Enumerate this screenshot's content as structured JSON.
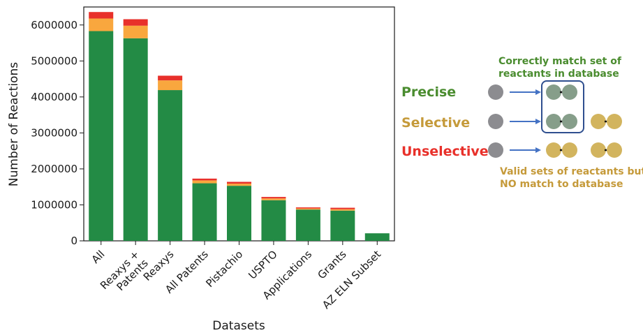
{
  "chart_data": {
    "type": "bar",
    "stacked": true,
    "xlabel": "Datasets",
    "ylabel": "Number of Reactions",
    "ylim": [
      0,
      6500000
    ],
    "yticks": [
      0,
      1000000,
      2000000,
      3000000,
      4000000,
      5000000,
      6000000
    ],
    "categories": [
      "All",
      "Reaxys + Patents",
      "Reaxys",
      "All Patents",
      "Pistachio",
      "USPTO",
      "Applications",
      "Grants",
      "AZ ELN Subset"
    ],
    "series": [
      {
        "key": "precise",
        "color": "#238b45",
        "values": [
          5830000,
          5630000,
          4190000,
          1600000,
          1530000,
          1130000,
          870000,
          840000,
          210000
        ]
      },
      {
        "key": "selective",
        "color": "#f9a73e",
        "values": [
          350000,
          350000,
          270000,
          80000,
          60000,
          50000,
          30000,
          40000,
          0
        ]
      },
      {
        "key": "unselective",
        "color": "#e8302a",
        "values": [
          180000,
          180000,
          130000,
          50000,
          50000,
          40000,
          30000,
          40000,
          0
        ]
      }
    ],
    "grid": false
  },
  "legend": {
    "precise": {
      "label": "Precise",
      "color": "#4a8c2f"
    },
    "selective": {
      "label": "Selective",
      "color": "#c59a3a"
    },
    "unselective": {
      "label": "Unselective",
      "color": "#e8302a"
    },
    "note_top": [
      "Correctly match set of",
      "reactants in database"
    ],
    "note_bottom": [
      "Valid sets of reactants but",
      "NO match to database"
    ],
    "note_top_color": "#4a8c2f",
    "note_bottom_color": "#c59a3a",
    "circle_gray": "#8c8c90",
    "circle_green": "#869e8a",
    "circle_gold": "#d2b45e",
    "arrow_color": "#4472c4",
    "box_color": "#2f4f8f"
  }
}
